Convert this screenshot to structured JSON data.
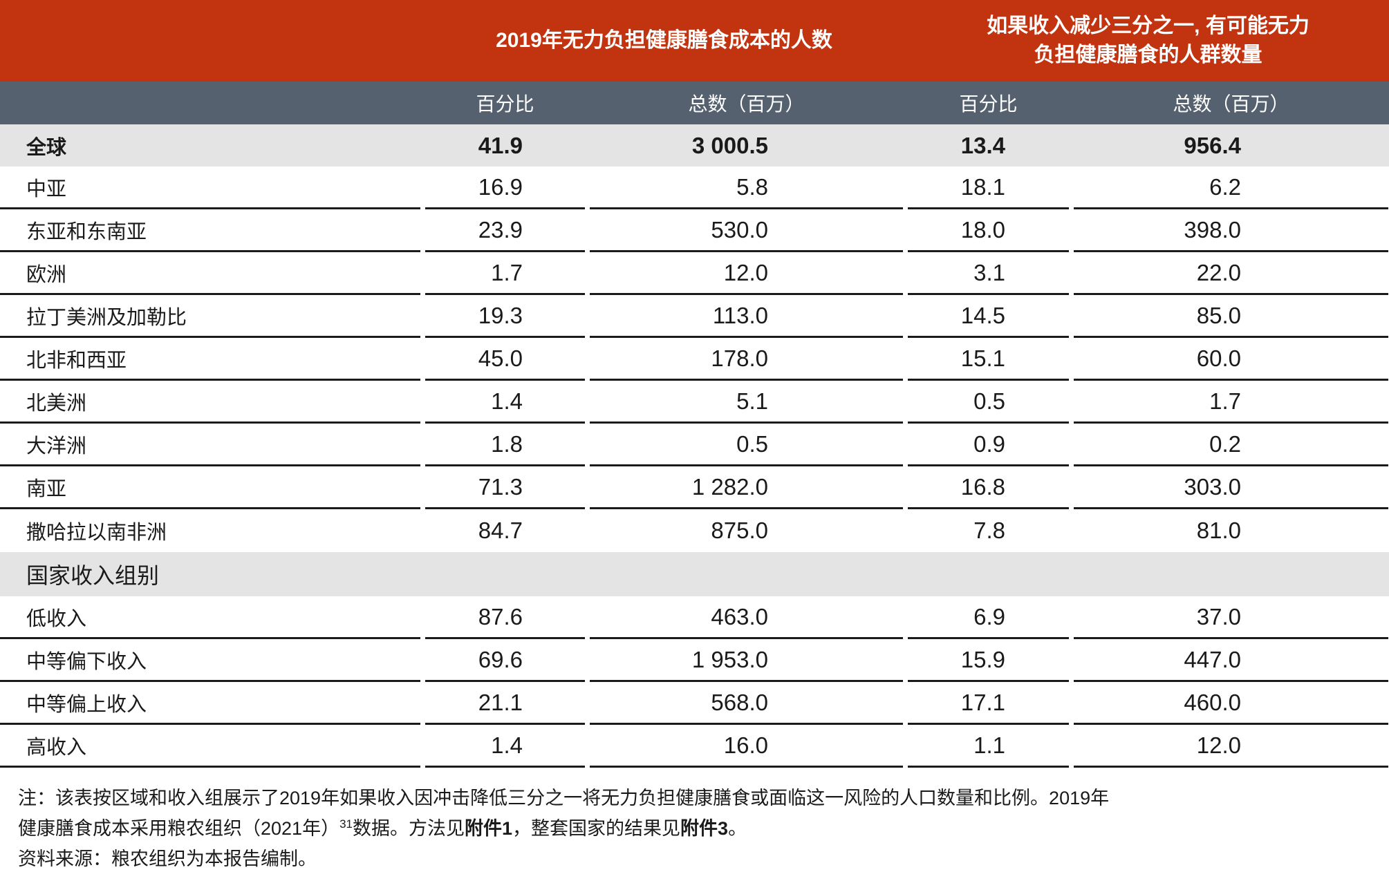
{
  "table": {
    "group_headers": [
      {
        "label": "2019年无力负担健康膳食成本的人数"
      },
      {
        "line1": "如果收入减少三分之一, 有可能无力",
        "line2": "负担健康膳食的人群数量"
      }
    ],
    "column_headers": [
      "百分比",
      "总数（百万）",
      "百分比",
      "总数（百万）"
    ],
    "rows": [
      {
        "label": "全球",
        "style": "global",
        "values": [
          "41.9",
          "3 000.5",
          "13.4",
          "956.4"
        ]
      },
      {
        "label": "中亚",
        "style": "region",
        "values": [
          "16.9",
          "5.8",
          "18.1",
          "6.2"
        ]
      },
      {
        "label": "东亚和东南亚",
        "style": "region",
        "values": [
          "23.9",
          "530.0",
          "18.0",
          "398.0"
        ]
      },
      {
        "label": "欧洲",
        "style": "region",
        "values": [
          "1.7",
          "12.0",
          "3.1",
          "22.0"
        ]
      },
      {
        "label": "拉丁美洲及加勒比",
        "style": "region",
        "values": [
          "19.3",
          "113.0",
          "14.5",
          "85.0"
        ]
      },
      {
        "label": "北非和西亚",
        "style": "region",
        "values": [
          "45.0",
          "178.0",
          "15.1",
          "60.0"
        ]
      },
      {
        "label": "北美洲",
        "style": "region",
        "values": [
          "1.4",
          "5.1",
          "0.5",
          "1.7"
        ]
      },
      {
        "label": "大洋洲",
        "style": "region",
        "values": [
          "1.8",
          "0.5",
          "0.9",
          "0.2"
        ]
      },
      {
        "label": "南亚",
        "style": "region",
        "values": [
          "71.3",
          "1 282.0",
          "16.8",
          "303.0"
        ]
      },
      {
        "label": "撒哈拉以南非洲",
        "style": "region",
        "values": [
          "84.7",
          "875.0",
          "7.8",
          "81.0"
        ]
      },
      {
        "label": "国家收入组别",
        "style": "section",
        "values": []
      },
      {
        "label": "低收入",
        "style": "income",
        "values": [
          "87.6",
          "463.0",
          "6.9",
          "37.0"
        ]
      },
      {
        "label": "中等偏下收入",
        "style": "income",
        "values": [
          "69.6",
          "1 953.0",
          "15.9",
          "447.0"
        ]
      },
      {
        "label": "中等偏上收入",
        "style": "income",
        "values": [
          "21.1",
          "568.0",
          "17.1",
          "460.0"
        ]
      },
      {
        "label": "高收入",
        "style": "income",
        "values": [
          "1.4",
          "16.0",
          "1.1",
          "12.0"
        ]
      }
    ]
  },
  "note": {
    "line1": "注：该表按区域和收入组展示了2019年如果收入因冲击降低三分之一将无力负担健康膳食或面临这一风险的人口数量和比例。2019年",
    "line2_pre": "健康膳食成本采用粮农组织（2021年）",
    "line2_sup": "31",
    "line2_mid1": "数据。方法见",
    "line2_annex1": "附件1",
    "line2_mid2": "，整套国家的结果见",
    "line2_annex3": "附件3",
    "line2_end": "。",
    "source": "资料来源：粮农组织为本报告编制。"
  },
  "colors": {
    "header_red": "#c23310",
    "subheader_slate": "#55616f",
    "band_gray": "#e4e4e4",
    "border_black": "#1a1a1a",
    "text": "#1a1a1a"
  }
}
